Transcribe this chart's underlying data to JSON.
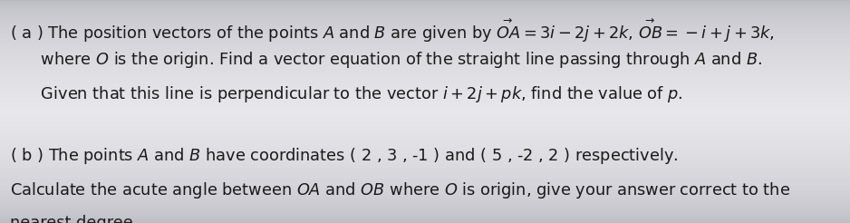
{
  "bg_color_center": "#e8e8ec",
  "bg_color_edge": "#b8b8c0",
  "text_color": "#1a1a1a",
  "figsize": [
    9.38,
    2.46
  ],
  "dpi": 100,
  "font_size": 12.8,
  "line1": "( a ) The position vectors of the points $A$ and $B$ are given by $\\overset{\\rightarrow}{OA}=3i-2j+2k$, $\\overset{\\rightarrow}{OB}=-i+j+3k$,",
  "line2": "      where $O$ is the origin. Find a vector equation of the straight line passing through $A$ and $B$.",
  "line3": "      Given that this line is perpendicular to the vector $i+2j+pk$, find the value of $p$.",
  "line4b": "( b ) The points $A$ and $B$ have coordinates ( 2 , 3 , -1 ) and ( 5 , -2 , 2 ) respectively.",
  "line5": "Calculate the acute angle between $OA$ and $OB$ where $O$ is origin, give your answer correct to the",
  "line6": "nearest degree"
}
